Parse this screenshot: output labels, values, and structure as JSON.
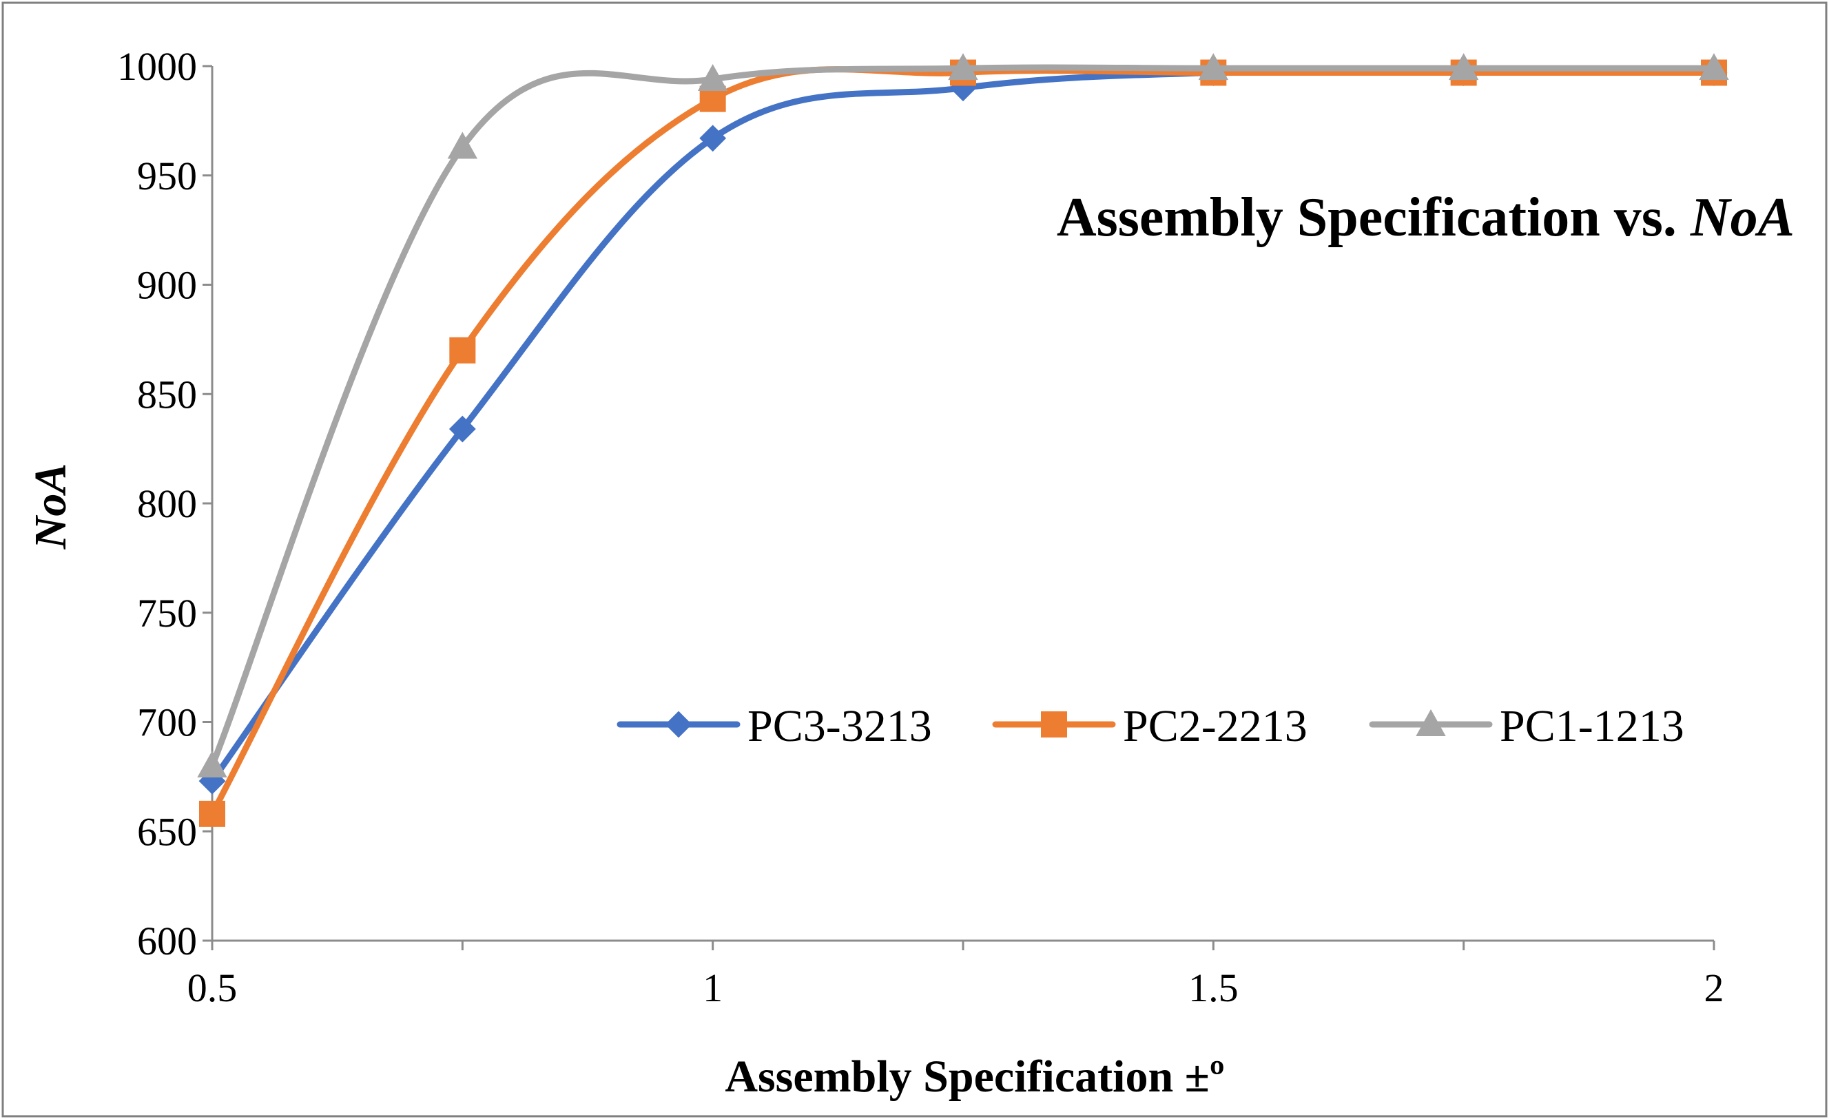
{
  "chart_data": {
    "type": "line",
    "title": "Assembly Specification vs. ",
    "title_italic": "NoA",
    "xlabel": "Assembly Specification ±º",
    "ylabel": "NoA",
    "xlim": [
      0.5,
      2
    ],
    "ylim": [
      600,
      1000
    ],
    "xticks": [
      0.5,
      1,
      1.5,
      2
    ],
    "xtick_labels": [
      "0.5",
      "1",
      "1.5",
      "2"
    ],
    "yticks": [
      600,
      650,
      700,
      750,
      800,
      850,
      900,
      950,
      1000
    ],
    "ytick_labels": [
      "600",
      "650",
      "700",
      "750",
      "800",
      "850",
      "900",
      "950",
      "1000"
    ],
    "grid": false,
    "legend_position": "right-middle",
    "x": [
      0.5,
      0.75,
      1,
      1.25,
      1.5,
      1.75,
      2
    ],
    "series": [
      {
        "name": "PC3-3213",
        "marker": "diamond",
        "color": "#4472C4",
        "values": [
          673,
          834,
          967,
          990,
          997,
          997,
          997
        ]
      },
      {
        "name": "PC2-2213",
        "marker": "square",
        "color": "#ED7D31",
        "values": [
          658,
          870,
          985,
          997,
          997,
          997,
          997
        ]
      },
      {
        "name": "PC1-1213",
        "marker": "triangle",
        "color": "#A5A5A5",
        "values": [
          680,
          963,
          994,
          999,
          999,
          999,
          999
        ]
      }
    ]
  }
}
